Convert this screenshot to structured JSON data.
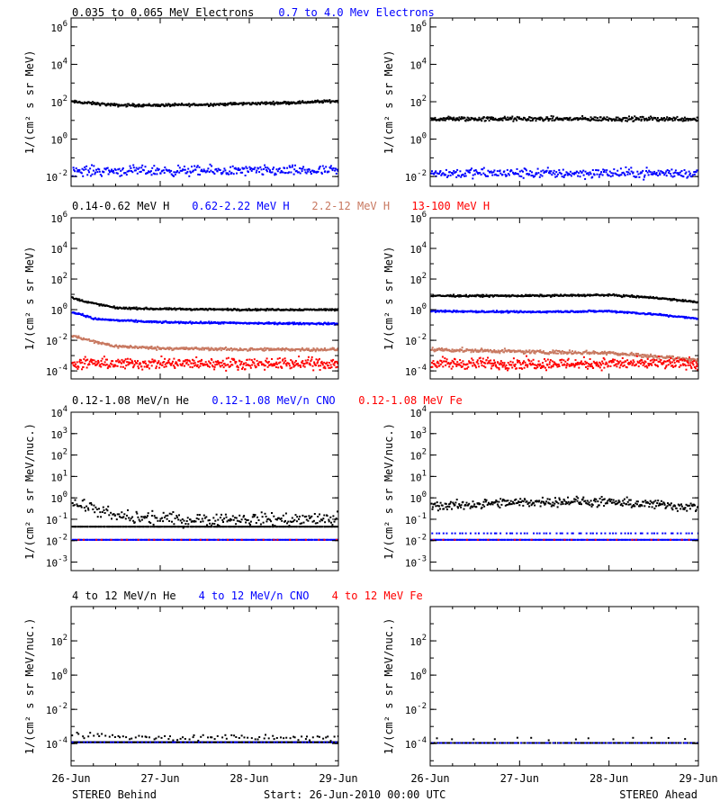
{
  "footer": {
    "left": "STEREO Behind",
    "center": "Start: 26-Jun-2010 00:00 UTC",
    "right": "STEREO Ahead"
  },
  "colors": {
    "black": "#000000",
    "blue": "#0000ff",
    "tan": "#c87860",
    "red": "#ff0000"
  },
  "x_ticks": [
    "26-Jun",
    "27-Jun",
    "28-Jun",
    "29-Jun"
  ],
  "chart_data": [
    {
      "type": "scatter",
      "rows": [
        {
          "ylabel": "1/(cm² s sr MeV)",
          "legend": [
            {
              "text": "0.035 to 0.065 MeV Electrons",
              "color": "#000000"
            },
            {
              "text": "0.7 to 4.0 Mev Electrons",
              "color": "#0000ff"
            }
          ],
          "ylim": [
            0.003,
            3000000
          ],
          "y_ticks": [
            {
              "v": 0.01,
              "b": "10",
              "e": "-2"
            },
            {
              "v": 1,
              "b": "10",
              "e": "0"
            },
            {
              "v": 100,
              "b": "10",
              "e": "2"
            },
            {
              "v": 10000,
              "b": "10",
              "e": "4"
            },
            {
              "v": 1000000,
              "b": "10",
              "e": "6"
            }
          ],
          "panels": [
            {
              "spacecraft": "STEREO Behind",
              "series": [
                {
                  "name": "0.035 to 0.065 MeV Electrons",
                  "color": "#000000",
                  "t": [
                    0,
                    0.5,
                    1,
                    1.5,
                    2,
                    2.5,
                    3
                  ],
                  "y": [
                    100,
                    65,
                    65,
                    70,
                    80,
                    90,
                    110
                  ],
                  "scatter": 0.06,
                  "density": 380
                },
                {
                  "name": "0.7 to 4.0 Mev Electrons",
                  "color": "#0000ff",
                  "t": [
                    0,
                    3
                  ],
                  "y": [
                    0.02,
                    0.02
                  ],
                  "scatter": 0.22,
                  "density": 320
                }
              ]
            },
            {
              "spacecraft": "STEREO Ahead",
              "series": [
                {
                  "name": "0.035 to 0.065 MeV Electrons",
                  "color": "#000000",
                  "t": [
                    0,
                    3
                  ],
                  "y": [
                    12,
                    12
                  ],
                  "scatter": 0.1,
                  "density": 380
                },
                {
                  "name": "0.7 to 4.0 Mev Electrons",
                  "color": "#0000ff",
                  "t": [
                    0,
                    3
                  ],
                  "y": [
                    0.015,
                    0.015
                  ],
                  "scatter": 0.22,
                  "density": 320
                }
              ]
            }
          ]
        },
        {
          "ylabel": "1/(cm² s sr MeV)",
          "legend": [
            {
              "text": "0.14-0.62 MeV H",
              "color": "#000000"
            },
            {
              "text": "0.62-2.22 MeV H",
              "color": "#0000ff"
            },
            {
              "text": "2.2-12 MeV H",
              "color": "#c87860"
            },
            {
              "text": "13-100 MeV H",
              "color": "#ff0000"
            }
          ],
          "ylim": [
            3e-05,
            1000000
          ],
          "y_ticks": [
            {
              "v": 0.0001,
              "b": "10",
              "e": "-4"
            },
            {
              "v": 0.01,
              "b": "10",
              "e": "-2"
            },
            {
              "v": 1,
              "b": "10",
              "e": "0"
            },
            {
              "v": 100,
              "b": "10",
              "e": "2"
            },
            {
              "v": 10000,
              "b": "10",
              "e": "4"
            },
            {
              "v": 1000000,
              "b": "10",
              "e": "6"
            }
          ],
          "panels": [
            {
              "spacecraft": "STEREO Behind",
              "series": [
                {
                  "name": "0.14-0.62 MeV H",
                  "color": "#000000",
                  "t": [
                    0,
                    0.1,
                    0.25,
                    0.5,
                    1,
                    2,
                    3
                  ],
                  "y": [
                    6,
                    4,
                    2.5,
                    1.3,
                    1.1,
                    1,
                    1
                  ],
                  "scatter": 0.05,
                  "density": 380
                },
                {
                  "name": "0.62-2.22 MeV H",
                  "color": "#0000ff",
                  "t": [
                    0,
                    0.1,
                    0.25,
                    0.5,
                    1,
                    2,
                    3
                  ],
                  "y": [
                    0.7,
                    0.5,
                    0.25,
                    0.2,
                    0.15,
                    0.13,
                    0.12
                  ],
                  "scatter": 0.05,
                  "density": 380
                },
                {
                  "name": "2.2-12 MeV H",
                  "color": "#c87860",
                  "t": [
                    0,
                    0.25,
                    0.5,
                    1,
                    2,
                    3
                  ],
                  "y": [
                    0.02,
                    0.008,
                    0.004,
                    0.003,
                    0.0025,
                    0.0025
                  ],
                  "scatter": 0.08,
                  "density": 380
                },
                {
                  "name": "13-100 MeV H",
                  "color": "#ff0000",
                  "t": [
                    0,
                    3
                  ],
                  "y": [
                    0.0003,
                    0.0003
                  ],
                  "scatter": 0.3,
                  "density": 450
                }
              ]
            },
            {
              "spacecraft": "STEREO Ahead",
              "series": [
                {
                  "name": "0.14-0.62 MeV H",
                  "color": "#000000",
                  "t": [
                    0,
                    1,
                    2,
                    2.5,
                    3
                  ],
                  "y": [
                    8,
                    8,
                    9,
                    6,
                    3
                  ],
                  "scatter": 0.05,
                  "density": 380
                },
                {
                  "name": "0.62-2.22 MeV H",
                  "color": "#0000ff",
                  "t": [
                    0,
                    1,
                    2,
                    2.5,
                    3
                  ],
                  "y": [
                    0.8,
                    0.7,
                    0.8,
                    0.5,
                    0.25
                  ],
                  "scatter": 0.05,
                  "density": 380
                },
                {
                  "name": "2.2-12 MeV H",
                  "color": "#c87860",
                  "t": [
                    0,
                    1,
                    2,
                    2.5,
                    3
                  ],
                  "y": [
                    0.0025,
                    0.0018,
                    0.0015,
                    0.0009,
                    0.0005
                  ],
                  "scatter": 0.1,
                  "density": 380
                },
                {
                  "name": "13-100 MeV H",
                  "color": "#ff0000",
                  "t": [
                    0,
                    3
                  ],
                  "y": [
                    0.0003,
                    0.0003
                  ],
                  "scatter": 0.3,
                  "density": 450
                }
              ]
            }
          ]
        },
        {
          "ylabel": "1/(cm² s sr MeV/nuc.)",
          "legend": [
            {
              "text": "0.12-1.08 MeV/n He",
              "color": "#000000"
            },
            {
              "text": "0.12-1.08 MeV/n CNO",
              "color": "#0000ff"
            },
            {
              "text": "0.12-1.08 MeV Fe",
              "color": "#ff0000"
            }
          ],
          "ylim": [
            0.0004,
            10000
          ],
          "y_ticks": [
            {
              "v": 0.001,
              "b": "10",
              "e": "-3"
            },
            {
              "v": 0.01,
              "b": "10",
              "e": "-2"
            },
            {
              "v": 0.1,
              "b": "10",
              "e": "-1"
            },
            {
              "v": 1,
              "b": "10",
              "e": "0"
            },
            {
              "v": 10,
              "b": "10",
              "e": "1"
            },
            {
              "v": 100,
              "b": "10",
              "e": "2"
            },
            {
              "v": 1000,
              "b": "10",
              "e": "3"
            },
            {
              "v": 10000,
              "b": "10",
              "e": "4"
            }
          ],
          "panels": [
            {
              "spacecraft": "STEREO Behind",
              "series": [
                {
                  "name": "0.12-1.08 MeV/n He",
                  "color": "#000000",
                  "t": [
                    0,
                    0.15,
                    0.35,
                    0.6,
                    1,
                    2,
                    3
                  ],
                  "y": [
                    0.6,
                    0.4,
                    0.2,
                    0.12,
                    0.1,
                    0.1,
                    0.1
                  ],
                  "scatter": 0.25,
                  "density": 260
                },
                {
                  "name": "0.12-1.08 MeV/n He",
                  "color": "#000000",
                  "t": [
                    0.3,
                    3
                  ],
                  "y": [
                    0.045,
                    0.045
                  ],
                  "scatter": 0.0,
                  "density": 220
                },
                {
                  "name": "0.12-1.08 MeV/n CNO",
                  "color": "#0000ff",
                  "t": [
                    0,
                    3
                  ],
                  "y": [
                    0.011,
                    0.011
                  ],
                  "scatter": 0.0,
                  "density": 240
                },
                {
                  "name": "0.12-1.08 MeV Fe",
                  "color": "#ff0000",
                  "t": [
                    0,
                    3
                  ],
                  "y": [
                    0.011,
                    0.011
                  ],
                  "scatter": 0.0,
                  "density": 30
                }
              ]
            },
            {
              "spacecraft": "STEREO Ahead",
              "series": [
                {
                  "name": "0.12-1.08 MeV/n He",
                  "color": "#000000",
                  "t": [
                    0,
                    0.5,
                    1,
                    1.5,
                    2,
                    2.5,
                    3
                  ],
                  "y": [
                    0.4,
                    0.5,
                    0.6,
                    0.7,
                    0.6,
                    0.5,
                    0.35
                  ],
                  "scatter": 0.18,
                  "density": 340
                },
                {
                  "name": "0.12-1.08 MeV/n CNO",
                  "color": "#0000ff",
                  "t": [
                    0,
                    3
                  ],
                  "y": [
                    0.011,
                    0.011
                  ],
                  "scatter": 0.0,
                  "density": 240
                },
                {
                  "name": "0.12-1.08 MeV/n CNO",
                  "color": "#0000ff",
                  "t": [
                    0.3,
                    3
                  ],
                  "y": [
                    0.022,
                    0.022
                  ],
                  "scatter": 0.0,
                  "density": 70
                },
                {
                  "name": "0.12-1.08 MeV Fe",
                  "color": "#ff0000",
                  "t": [
                    0,
                    3
                  ],
                  "y": [
                    0.011,
                    0.011
                  ],
                  "scatter": 0.0,
                  "density": 25
                }
              ]
            }
          ]
        },
        {
          "ylabel": "1/(cm² s sr MeV/nuc.)",
          "legend": [
            {
              "text": "4 to 12 MeV/n He",
              "color": "#000000"
            },
            {
              "text": "4 to 12 MeV/n CNO",
              "color": "#0000ff"
            },
            {
              "text": "4 to 12 MeV Fe",
              "color": "#ff0000"
            }
          ],
          "ylim": [
            5e-06,
            10000
          ],
          "y_ticks": [
            {
              "v": 0.0001,
              "b": "10",
              "e": "-4"
            },
            {
              "v": 0.01,
              "b": "10",
              "e": "-2"
            },
            {
              "v": 1,
              "b": "10",
              "e": "0"
            },
            {
              "v": 100,
              "b": "10",
              "e": "2"
            }
          ],
          "panels": [
            {
              "spacecraft": "STEREO Behind",
              "series": [
                {
                  "name": "4 to 12 MeV/n He",
                  "color": "#000000",
                  "t": [
                    0,
                    3
                  ],
                  "y": [
                    0.00012,
                    0.00012
                  ],
                  "scatter": 0.0,
                  "density": 300
                },
                {
                  "name": "4 to 12 MeV/n He",
                  "color": "#000000",
                  "t": [
                    0,
                    0.5,
                    1,
                    3
                  ],
                  "y": [
                    0.00035,
                    0.00025,
                    0.00022,
                    0.00022
                  ],
                  "scatter": 0.15,
                  "density": 90
                },
                {
                  "name": "4 to 12 MeV/n CNO",
                  "color": "#0000ff",
                  "t": [
                    0,
                    3
                  ],
                  "y": [
                    0.00012,
                    0.00012
                  ],
                  "scatter": 0.0,
                  "density": 60
                }
              ]
            },
            {
              "spacecraft": "STEREO Ahead",
              "series": [
                {
                  "name": "4 to 12 MeV/n He",
                  "color": "#000000",
                  "t": [
                    0,
                    3
                  ],
                  "y": [
                    0.00011,
                    0.00011
                  ],
                  "scatter": 0.0,
                  "density": 160
                },
                {
                  "name": "4 to 12 MeV/n He",
                  "color": "#000000",
                  "t": [
                    0.5,
                    2.5
                  ],
                  "y": [
                    0.00018,
                    0.00018
                  ],
                  "scatter": 0.1,
                  "density": 14
                },
                {
                  "name": "4 to 12 MeV/n CNO",
                  "color": "#0000ff",
                  "t": [
                    0,
                    3
                  ],
                  "y": [
                    0.00011,
                    0.00011
                  ],
                  "scatter": 0.0,
                  "density": 60
                }
              ]
            }
          ]
        }
      ]
    }
  ]
}
